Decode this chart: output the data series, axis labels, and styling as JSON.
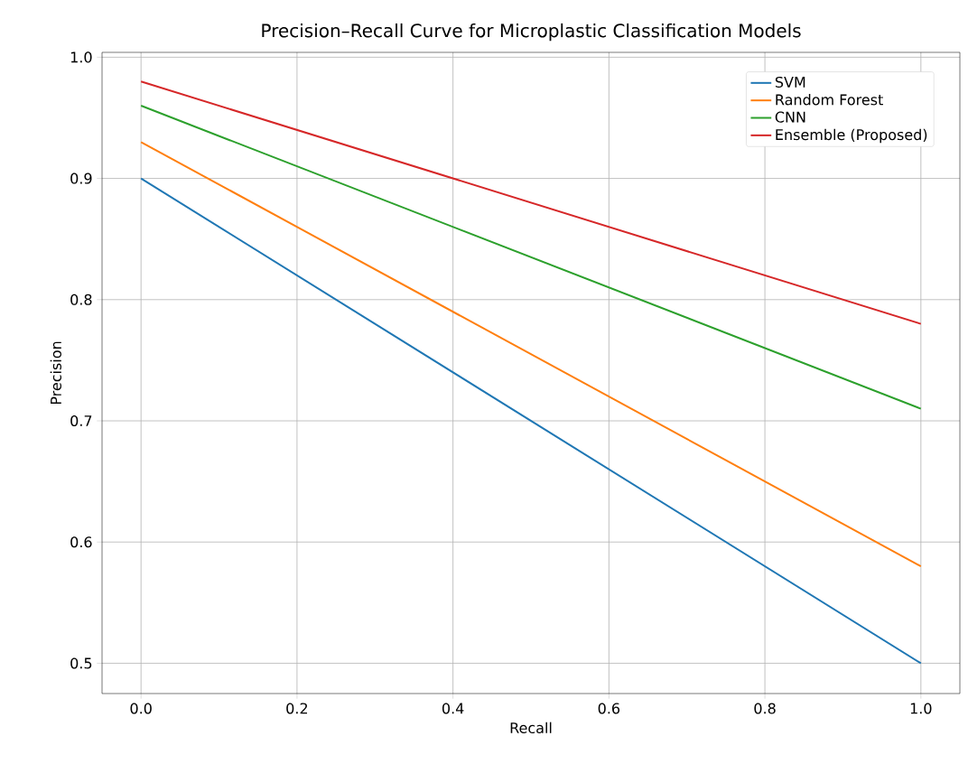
{
  "chart_data": {
    "type": "line",
    "title": "Precision–Recall Curve for Microplastic Classification Models",
    "xlabel": "Recall",
    "ylabel": "Precision",
    "x": [
      0,
      1
    ],
    "series": [
      {
        "name": "SVM",
        "color": "#1f77b4",
        "values": [
          0.9,
          0.5
        ]
      },
      {
        "name": "Random Forest",
        "color": "#ff7f0e",
        "values": [
          0.93,
          0.58
        ]
      },
      {
        "name": "CNN",
        "color": "#2ca02c",
        "values": [
          0.96,
          0.71
        ]
      },
      {
        "name": "Ensemble (Proposed)",
        "color": "#d62728",
        "values": [
          0.98,
          0.78
        ]
      }
    ],
    "xlim": [
      -0.05,
      1.05
    ],
    "ylim": [
      0.475,
      1.004
    ],
    "xticks": [
      {
        "value": 0,
        "label": "0.0"
      },
      {
        "value": 0.2,
        "label": "0.2"
      },
      {
        "value": 0.4,
        "label": "0.4"
      },
      {
        "value": 0.6,
        "label": "0.6"
      },
      {
        "value": 0.8,
        "label": "0.8"
      },
      {
        "value": 1,
        "label": "1.0"
      }
    ],
    "yticks": [
      {
        "value": 0.5,
        "label": "0.5"
      },
      {
        "value": 0.6,
        "label": "0.6"
      },
      {
        "value": 0.7,
        "label": "0.7"
      },
      {
        "value": 0.8,
        "label": "0.8"
      },
      {
        "value": 0.9,
        "label": "0.9"
      },
      {
        "value": 1,
        "label": "1.0"
      }
    ],
    "grid": true,
    "legend": "top right",
    "marker": "none",
    "line_style": "solid"
  }
}
